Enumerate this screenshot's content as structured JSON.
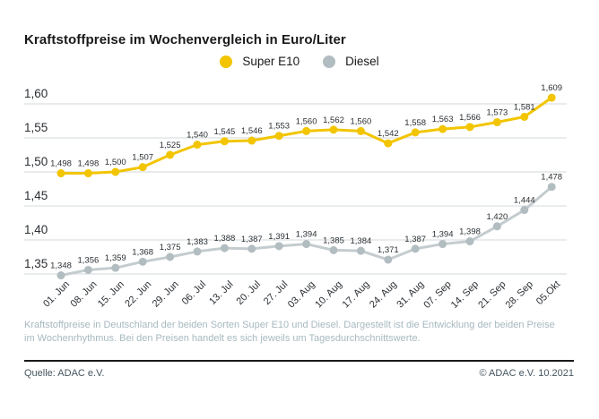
{
  "title": "Kraftstoffpreise im Wochenvergleich in Euro/Liter",
  "chart_data": {
    "type": "line",
    "title": "Kraftstoffpreise im Wochenvergleich in Euro/Liter",
    "categories": [
      "01. Jun",
      "08. Jun",
      "15. Jun",
      "22. Jun",
      "29. Jun",
      "06. Jul",
      "13. Jul",
      "20. Jul",
      "27. Jul",
      "03. Aug",
      "10. Aug",
      "17. Aug",
      "24. Aug",
      "31. Aug",
      "07. Sep",
      "14. Sep",
      "21. Sep",
      "28. Sep",
      "05.Okt"
    ],
    "series": [
      {
        "name": "Super E10",
        "color": "#f2c500",
        "dot_color": "#f2c500",
        "values": [
          1.498,
          1.498,
          1.5,
          1.507,
          1.525,
          1.54,
          1.545,
          1.546,
          1.553,
          1.56,
          1.562,
          1.56,
          1.542,
          1.558,
          1.563,
          1.566,
          1.573,
          1.581,
          1.609
        ]
      },
      {
        "name": "Diesel",
        "color": "#c4cccf",
        "dot_color": "#b2bdc1",
        "values": [
          1.348,
          1.356,
          1.359,
          1.368,
          1.375,
          1.383,
          1.388,
          1.387,
          1.391,
          1.394,
          1.385,
          1.384,
          1.371,
          1.387,
          1.394,
          1.398,
          1.42,
          1.444,
          1.478
        ]
      }
    ],
    "y_ticks": [
      1.6,
      1.55,
      1.5,
      1.45,
      1.4,
      1.35
    ],
    "ylim": [
      1.35,
      1.6
    ],
    "decimal_separator": ",",
    "grid": true,
    "legend_position": "top",
    "xlabel": "",
    "ylabel": "Euro/Liter",
    "colors": {
      "gridline": "#dce0e1",
      "tick_text": "#2b2f33",
      "point_label_text": "#2b2f33"
    }
  },
  "description": "Kraftstoffpreise in Deutschland der beiden Sorten Super E10 und Diesel. Dargestellt ist die Entwicklung der beiden Preise im Wochenrhythmus. Bei den Preisen handelt es sich jeweils um Tagesdurchschnittswerte.",
  "footer": {
    "source": "Quelle: ADAC e.V.",
    "copyright": "© ADAC e.V. 10.2021"
  }
}
